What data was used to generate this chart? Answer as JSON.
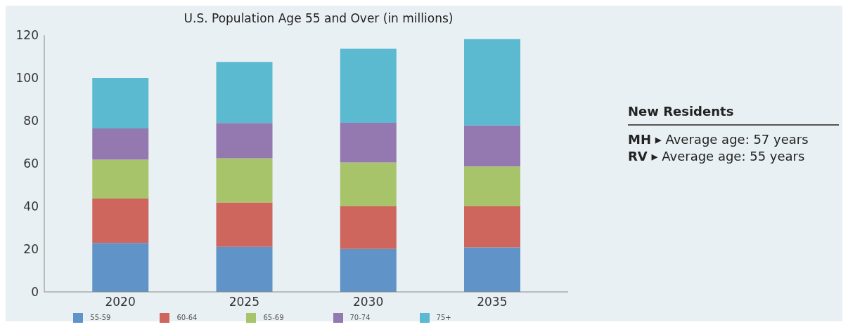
{
  "chart_data": {
    "type": "bar",
    "title": "U.S. Population Age 55 and Over (in millions)",
    "categories": [
      "2020",
      "2025",
      "2030",
      "2035"
    ],
    "stacked": true,
    "series": [
      {
        "name": "55-59",
        "color": "#6094c8",
        "values": [
          22.9,
          21.1,
          20.1,
          20.8
        ]
      },
      {
        "name": "60-64",
        "color": "#cf665e",
        "values": [
          20.7,
          20.7,
          19.9,
          19.2
        ]
      },
      {
        "name": "65-69",
        "color": "#a8c46b",
        "values": [
          18.2,
          20.7,
          20.5,
          18.6
        ]
      },
      {
        "name": "70-74",
        "color": "#9479b0",
        "values": [
          14.6,
          16.4,
          18.5,
          19.2
        ]
      },
      {
        "name": "75+",
        "color": "#5bbad0",
        "values": [
          23.6,
          28.6,
          34.6,
          40.3
        ]
      }
    ],
    "ylim": [
      0,
      120
    ],
    "yticks": [
      0,
      20,
      40,
      60,
      80,
      100,
      120
    ],
    "grid": false,
    "legend": "bottom",
    "annotations": [
      "New Residents",
      "MH ▸ Average age: 57 years",
      "RV ▸ Average age: 55 years"
    ]
  }
}
